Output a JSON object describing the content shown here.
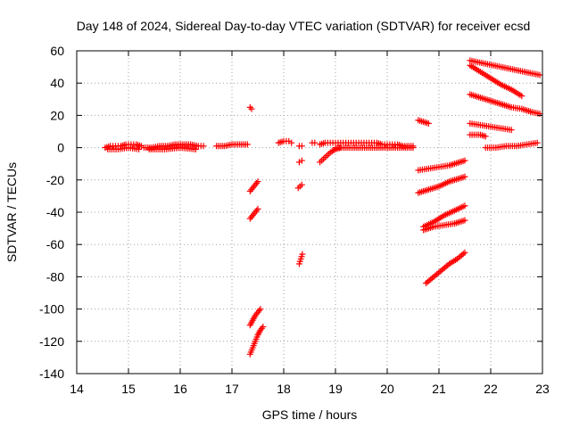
{
  "chart_data": {
    "type": "scatter",
    "title": "Day 148 of 2024, Sidereal Day-to-day VTEC variation (SDTVAR) for receiver ecsd",
    "xlabel": "GPS time / hours",
    "ylabel": "SDTVAR / TECUs",
    "xlim": [
      14,
      23
    ],
    "ylim": [
      -140,
      60
    ],
    "xticks": [
      "14",
      "15",
      "16",
      "17",
      "18",
      "19",
      "20",
      "21",
      "22",
      "23"
    ],
    "yticks": [
      "60",
      "40",
      "20",
      "0",
      "-20",
      "-40",
      "-60",
      "-80",
      "-100",
      "-120",
      "-140"
    ],
    "grid": true,
    "legend": "none",
    "marker": "+",
    "color": "#ff0000",
    "series": [
      {
        "x": [
          14.55,
          14.65,
          14.75,
          14.85,
          14.95,
          15.05,
          15.15,
          15.25
        ],
        "y": [
          0,
          1,
          1,
          1,
          2,
          2,
          2,
          1
        ]
      },
      {
        "x": [
          14.6,
          14.8,
          15.0,
          15.2
        ],
        "y": [
          -1,
          -1,
          0,
          -1
        ]
      },
      {
        "x": [
          15.3,
          15.45,
          15.6,
          15.75,
          15.9,
          16.05,
          16.2,
          16.35,
          16.45
        ],
        "y": [
          0,
          0,
          1,
          1,
          2,
          2,
          2,
          1,
          1
        ]
      },
      {
        "x": [
          15.4,
          15.7,
          16.0,
          16.3
        ],
        "y": [
          -1,
          -1,
          0,
          -1
        ]
      },
      {
        "x": [
          16.7,
          16.85,
          17.0,
          17.15,
          17.3
        ],
        "y": [
          1,
          1,
          2,
          2,
          2
        ]
      },
      {
        "x": [
          17.35,
          17.38
        ],
        "y": [
          25,
          24
        ]
      },
      {
        "x": [
          17.35,
          17.4,
          17.45,
          17.5
        ],
        "y": [
          -27,
          -25,
          -23,
          -21
        ]
      },
      {
        "x": [
          17.35,
          17.4,
          17.45,
          17.5
        ],
        "y": [
          -44,
          -42,
          -40,
          -38
        ]
      },
      {
        "x": [
          17.35,
          17.4,
          17.45,
          17.5,
          17.55
        ],
        "y": [
          -110,
          -107,
          -104,
          -102,
          -100
        ]
      },
      {
        "x": [
          17.35,
          17.4,
          17.45,
          17.5,
          17.55,
          17.6
        ],
        "y": [
          -128,
          -124,
          -120,
          -116,
          -113,
          -111
        ]
      },
      {
        "x": [
          17.9,
          18.0,
          18.1,
          18.15
        ],
        "y": [
          3,
          4,
          4,
          3
        ]
      },
      {
        "x": [
          18.3,
          18.35
        ],
        "y": [
          1,
          1
        ]
      },
      {
        "x": [
          18.3,
          18.35
        ],
        "y": [
          -9,
          -8
        ]
      },
      {
        "x": [
          18.28,
          18.35
        ],
        "y": [
          -25,
          -23
        ]
      },
      {
        "x": [
          18.3,
          18.33,
          18.36
        ],
        "y": [
          -72,
          -69,
          -66
        ]
      },
      {
        "x": [
          18.55,
          18.6
        ],
        "y": [
          3,
          3
        ]
      },
      {
        "x": [
          18.7,
          18.8,
          18.9,
          19.0,
          19.1,
          19.2,
          19.3,
          19.4,
          19.5,
          19.6,
          19.7,
          19.8,
          19.9,
          20.0,
          20.1,
          20.2,
          20.3,
          20.5
        ],
        "y": [
          2,
          3,
          3,
          3,
          3,
          3,
          3,
          3,
          3,
          3,
          3,
          3,
          2,
          2,
          2,
          2,
          1,
          1
        ]
      },
      {
        "x": [
          19.0,
          19.3,
          19.6,
          19.9,
          20.2,
          20.5
        ],
        "y": [
          0,
          0,
          0,
          0,
          0,
          0
        ]
      },
      {
        "x": [
          18.7,
          18.8,
          18.9,
          19.0,
          19.1
        ],
        "y": [
          -9,
          -6,
          -3,
          -1,
          0
        ]
      },
      {
        "x": [
          20.6,
          20.7,
          20.8
        ],
        "y": [
          17,
          16,
          15
        ]
      },
      {
        "x": [
          20.6,
          20.8,
          21.0,
          21.2,
          21.4,
          21.5
        ],
        "y": [
          -14,
          -13,
          -12,
          -11,
          -9,
          -8
        ]
      },
      {
        "x": [
          20.6,
          20.8,
          21.0,
          21.2,
          21.4,
          21.5
        ],
        "y": [
          -28,
          -26,
          -24,
          -21,
          -19,
          -18
        ]
      },
      {
        "x": [
          20.7,
          20.9,
          21.1,
          21.3,
          21.5
        ],
        "y": [
          -51,
          -49,
          -48,
          -47,
          -45
        ]
      },
      {
        "x": [
          20.7,
          20.9,
          21.1,
          21.3,
          21.5
        ],
        "y": [
          -49,
          -46,
          -42,
          -39,
          -36
        ]
      },
      {
        "x": [
          20.75,
          20.9,
          21.05,
          21.2,
          21.35,
          21.5
        ],
        "y": [
          -84,
          -80,
          -76,
          -72,
          -69,
          -65
        ]
      },
      {
        "x": [
          21.6,
          21.75,
          21.9,
          22.05,
          22.2,
          22.35,
          22.5,
          22.65,
          22.8,
          22.95
        ],
        "y": [
          54,
          53,
          52,
          51,
          50,
          49,
          48,
          47,
          46,
          45
        ]
      },
      {
        "x": [
          21.6,
          21.8,
          22.0,
          22.2,
          22.4,
          22.6
        ],
        "y": [
          51,
          47,
          43,
          39,
          36,
          32
        ]
      },
      {
        "x": [
          21.6,
          21.8,
          22.0,
          22.2,
          22.4,
          22.6,
          22.8,
          22.95
        ],
        "y": [
          33,
          31,
          29,
          27,
          25,
          24,
          22,
          21
        ]
      },
      {
        "x": [
          21.6,
          21.8,
          22.0,
          22.2,
          22.4
        ],
        "y": [
          15,
          14,
          13,
          12,
          11
        ]
      },
      {
        "x": [
          21.6,
          21.8,
          21.9
        ],
        "y": [
          8,
          8,
          7
        ]
      },
      {
        "x": [
          21.9,
          22.1,
          22.3,
          22.5,
          22.7,
          22.9
        ],
        "y": [
          0,
          0,
          1,
          1,
          2,
          3
        ]
      }
    ]
  }
}
